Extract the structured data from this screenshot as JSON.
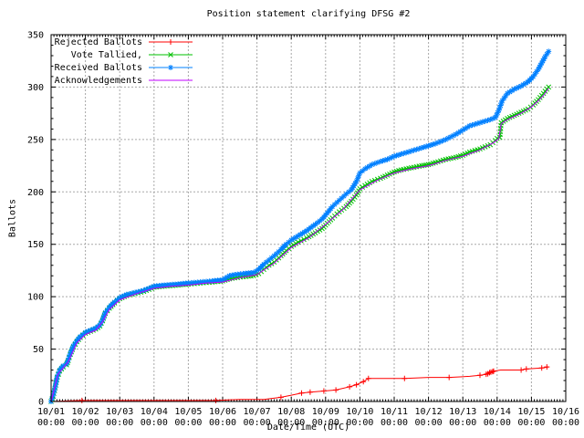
{
  "title": "Position statement clarifying DFSG #2",
  "axes": {
    "x": {
      "label": "Date/Time (UTC)",
      "tick_dates": [
        "10/01",
        "10/02",
        "10/03",
        "10/04",
        "10/05",
        "10/06",
        "10/07",
        "10/08",
        "10/09",
        "10/10",
        "10/11",
        "10/12",
        "10/13",
        "10/14",
        "10/15",
        "10/16"
      ],
      "tick_time": "00:00",
      "days": 15,
      "minor_per_day": 12
    },
    "y": {
      "label": "Ballots",
      "min": 0,
      "max": 350,
      "major_step": 50,
      "minor_step": 10
    }
  },
  "colors": {
    "background": "#ffffff",
    "grid": "#a8a8a8",
    "axis": "#000000",
    "rejected": "#ff0000",
    "tallied": "#00c000",
    "received": "#0080ff",
    "acknowledgements": "#c000ff"
  },
  "legend": [
    {
      "key": "rejected",
      "label": "Rejected Ballots",
      "color": "#ff0000",
      "marker": "plus"
    },
    {
      "key": "tallied",
      "label": "Vote Tallied,",
      "color": "#00c000",
      "marker": "cross"
    },
    {
      "key": "received",
      "label": "Received Ballots",
      "color": "#0080ff",
      "marker": "star"
    },
    {
      "key": "acknowledgements",
      "label": "Acknowledgements",
      "color": "#c000ff",
      "marker": "none"
    }
  ],
  "chart_data": {
    "type": "line",
    "title": "Position statement clarifying DFSG #2",
    "xlabel": "Date/Time (UTC)",
    "ylabel": "Ballots",
    "x_unit": "days since 10/01 00:00 UTC",
    "xlim": [
      0,
      15
    ],
    "ylim": [
      0,
      350
    ],
    "grid": true,
    "legend_position": "top-left-inside",
    "series": [
      {
        "key": "rejected",
        "name": "Rejected Ballots",
        "color": "#ff0000",
        "marker": "plus",
        "dense_markers": false,
        "points": [
          [
            0,
            0
          ],
          [
            0.9,
            1
          ],
          [
            2,
            1
          ],
          [
            3,
            1
          ],
          [
            4,
            1
          ],
          [
            4.8,
            1
          ],
          [
            5.5,
            2
          ],
          [
            6.2,
            2
          ],
          [
            6.7,
            4
          ],
          [
            7.0,
            6
          ],
          [
            7.3,
            8
          ],
          [
            7.55,
            9
          ],
          [
            7.95,
            10
          ],
          [
            8.3,
            11
          ],
          [
            8.7,
            14
          ],
          [
            8.9,
            16
          ],
          [
            9.1,
            19
          ],
          [
            9.25,
            22
          ],
          [
            9.6,
            22
          ],
          [
            10.0,
            22
          ],
          [
            10.3,
            22
          ],
          [
            11.0,
            23
          ],
          [
            11.6,
            23
          ],
          [
            12.2,
            24
          ],
          [
            12.5,
            25
          ],
          [
            12.7,
            26
          ],
          [
            12.8,
            28
          ],
          [
            12.9,
            29
          ],
          [
            13.1,
            30
          ],
          [
            13.7,
            30
          ],
          [
            13.85,
            31
          ],
          [
            14.3,
            32
          ],
          [
            14.5,
            33
          ]
        ],
        "marker_points": [
          [
            0.9,
            1
          ],
          [
            4.8,
            1
          ],
          [
            6.7,
            4
          ],
          [
            7.3,
            8
          ],
          [
            7.55,
            9
          ],
          [
            7.95,
            10
          ],
          [
            8.3,
            11
          ],
          [
            8.7,
            14
          ],
          [
            8.9,
            16
          ],
          [
            9.1,
            19
          ],
          [
            9.25,
            22
          ],
          [
            10.3,
            22
          ],
          [
            11.6,
            23
          ],
          [
            12.5,
            25
          ],
          [
            12.68,
            26
          ],
          [
            12.73,
            26.5
          ],
          [
            12.78,
            27.5
          ],
          [
            12.82,
            28
          ],
          [
            12.87,
            28.5
          ],
          [
            12.9,
            29
          ],
          [
            13.7,
            30
          ],
          [
            13.85,
            31
          ],
          [
            14.3,
            32
          ],
          [
            14.45,
            33
          ]
        ]
      },
      {
        "key": "tallied",
        "name": "Vote Tallied,",
        "color": "#00c000",
        "marker": "cross",
        "dense_markers": true,
        "points": [
          [
            0,
            0
          ],
          [
            0.06,
            5
          ],
          [
            0.12,
            13
          ],
          [
            0.18,
            23
          ],
          [
            0.25,
            29
          ],
          [
            0.35,
            33
          ],
          [
            0.45,
            35
          ],
          [
            0.5,
            39
          ],
          [
            0.56,
            45
          ],
          [
            0.65,
            52
          ],
          [
            0.75,
            57
          ],
          [
            0.85,
            61
          ],
          [
            1.0,
            65
          ],
          [
            1.15,
            67
          ],
          [
            1.3,
            69
          ],
          [
            1.42,
            72
          ],
          [
            1.5,
            77
          ],
          [
            1.58,
            84
          ],
          [
            1.7,
            89
          ],
          [
            1.85,
            94
          ],
          [
            2.0,
            98
          ],
          [
            2.2,
            101
          ],
          [
            2.45,
            103
          ],
          [
            2.7,
            105
          ],
          [
            3.0,
            109
          ],
          [
            3.3,
            110
          ],
          [
            3.7,
            111
          ],
          [
            4.0,
            112
          ],
          [
            4.35,
            113
          ],
          [
            4.7,
            114
          ],
          [
            5.0,
            115
          ],
          [
            5.2,
            117
          ],
          [
            5.35,
            118
          ],
          [
            5.6,
            119
          ],
          [
            5.9,
            120
          ],
          [
            6.05,
            122
          ],
          [
            6.2,
            126
          ],
          [
            6.35,
            130
          ],
          [
            6.5,
            133
          ],
          [
            6.7,
            139
          ],
          [
            6.85,
            144
          ],
          [
            7.0,
            148
          ],
          [
            7.2,
            152
          ],
          [
            7.45,
            156
          ],
          [
            7.7,
            161
          ],
          [
            7.9,
            165
          ],
          [
            8.05,
            170
          ],
          [
            8.2,
            175
          ],
          [
            8.4,
            181
          ],
          [
            8.6,
            186
          ],
          [
            8.75,
            191
          ],
          [
            8.9,
            197
          ],
          [
            9.0,
            203
          ],
          [
            9.15,
            206
          ],
          [
            9.35,
            210
          ],
          [
            9.6,
            213
          ],
          [
            9.8,
            216
          ],
          [
            10.0,
            219
          ],
          [
            10.2,
            221
          ],
          [
            10.5,
            223
          ],
          [
            10.8,
            225
          ],
          [
            11.0,
            226
          ],
          [
            11.2,
            228
          ],
          [
            11.5,
            231
          ],
          [
            11.8,
            233
          ],
          [
            12.0,
            235
          ],
          [
            12.2,
            238
          ],
          [
            12.5,
            241
          ],
          [
            12.8,
            245
          ],
          [
            12.95,
            249
          ],
          [
            13.0,
            251
          ],
          [
            13.08,
            252
          ],
          [
            13.12,
            266
          ],
          [
            13.3,
            270
          ],
          [
            13.5,
            273
          ],
          [
            13.7,
            276
          ],
          [
            13.9,
            279
          ],
          [
            14.05,
            283
          ],
          [
            14.2,
            288
          ],
          [
            14.3,
            292
          ],
          [
            14.4,
            296
          ],
          [
            14.5,
            300
          ]
        ]
      },
      {
        "key": "received",
        "name": "Received Ballots",
        "color": "#0080ff",
        "marker": "star",
        "dense_markers": true,
        "points": [
          [
            0,
            0
          ],
          [
            0.06,
            6
          ],
          [
            0.12,
            14
          ],
          [
            0.18,
            24
          ],
          [
            0.25,
            30
          ],
          [
            0.35,
            34
          ],
          [
            0.45,
            36
          ],
          [
            0.5,
            40
          ],
          [
            0.56,
            46
          ],
          [
            0.65,
            53
          ],
          [
            0.75,
            58
          ],
          [
            0.85,
            62
          ],
          [
            1.0,
            66
          ],
          [
            1.15,
            68
          ],
          [
            1.3,
            70
          ],
          [
            1.42,
            73
          ],
          [
            1.5,
            78
          ],
          [
            1.58,
            85
          ],
          [
            1.7,
            90
          ],
          [
            1.85,
            95
          ],
          [
            2.0,
            99
          ],
          [
            2.2,
            102
          ],
          [
            2.45,
            104
          ],
          [
            2.7,
            106
          ],
          [
            3.0,
            110
          ],
          [
            3.3,
            111
          ],
          [
            3.7,
            112
          ],
          [
            4.0,
            113
          ],
          [
            4.35,
            114
          ],
          [
            4.7,
            115
          ],
          [
            5.0,
            116
          ],
          [
            5.2,
            120
          ],
          [
            5.35,
            121
          ],
          [
            5.6,
            122
          ],
          [
            5.9,
            123
          ],
          [
            6.05,
            126
          ],
          [
            6.2,
            131
          ],
          [
            6.35,
            135
          ],
          [
            6.5,
            139
          ],
          [
            6.7,
            145
          ],
          [
            6.85,
            150
          ],
          [
            7.0,
            154
          ],
          [
            7.2,
            158
          ],
          [
            7.45,
            163
          ],
          [
            7.7,
            169
          ],
          [
            7.9,
            174
          ],
          [
            8.05,
            180
          ],
          [
            8.2,
            186
          ],
          [
            8.4,
            192
          ],
          [
            8.6,
            198
          ],
          [
            8.75,
            202
          ],
          [
            8.9,
            210
          ],
          [
            9.0,
            218
          ],
          [
            9.15,
            222
          ],
          [
            9.35,
            226
          ],
          [
            9.6,
            229
          ],
          [
            9.8,
            231
          ],
          [
            10.0,
            234
          ],
          [
            10.2,
            236
          ],
          [
            10.5,
            239
          ],
          [
            10.8,
            242
          ],
          [
            11.0,
            244
          ],
          [
            11.2,
            246
          ],
          [
            11.5,
            250
          ],
          [
            11.8,
            255
          ],
          [
            12.0,
            259
          ],
          [
            12.2,
            263
          ],
          [
            12.5,
            266
          ],
          [
            12.8,
            269
          ],
          [
            12.95,
            271
          ],
          [
            13.05,
            278
          ],
          [
            13.15,
            287
          ],
          [
            13.3,
            294
          ],
          [
            13.5,
            298
          ],
          [
            13.7,
            301
          ],
          [
            13.9,
            305
          ],
          [
            14.05,
            310
          ],
          [
            14.2,
            317
          ],
          [
            14.3,
            323
          ],
          [
            14.4,
            329
          ],
          [
            14.5,
            334
          ]
        ]
      },
      {
        "key": "acknowledgements",
        "name": "Acknowledgements",
        "color": "#c000ff",
        "marker": "none",
        "dense_markers": false,
        "points": [
          [
            0,
            0
          ],
          [
            0.2,
            26
          ],
          [
            0.5,
            38
          ],
          [
            0.75,
            56
          ],
          [
            1.0,
            64
          ],
          [
            1.3,
            68
          ],
          [
            1.5,
            76
          ],
          [
            1.7,
            88
          ],
          [
            2.0,
            97
          ],
          [
            2.5,
            103
          ],
          [
            3.0,
            108
          ],
          [
            3.5,
            110
          ],
          [
            4.0,
            111
          ],
          [
            4.5,
            113
          ],
          [
            5.0,
            114
          ],
          [
            5.5,
            118
          ],
          [
            6.0,
            121
          ],
          [
            6.5,
            132
          ],
          [
            7.0,
            147
          ],
          [
            7.5,
            156
          ],
          [
            8.0,
            169
          ],
          [
            8.5,
            183
          ],
          [
            9.0,
            202
          ],
          [
            9.5,
            211
          ],
          [
            10.0,
            218
          ],
          [
            10.5,
            222
          ],
          [
            11.0,
            225
          ],
          [
            11.5,
            230
          ],
          [
            12.0,
            234
          ],
          [
            12.5,
            240
          ],
          [
            12.9,
            247
          ],
          [
            13.05,
            251
          ],
          [
            13.12,
            265
          ],
          [
            13.3,
            269
          ],
          [
            13.7,
            275
          ],
          [
            14.0,
            281
          ],
          [
            14.2,
            287
          ],
          [
            14.35,
            292
          ],
          [
            14.5,
            299
          ]
        ]
      }
    ]
  }
}
